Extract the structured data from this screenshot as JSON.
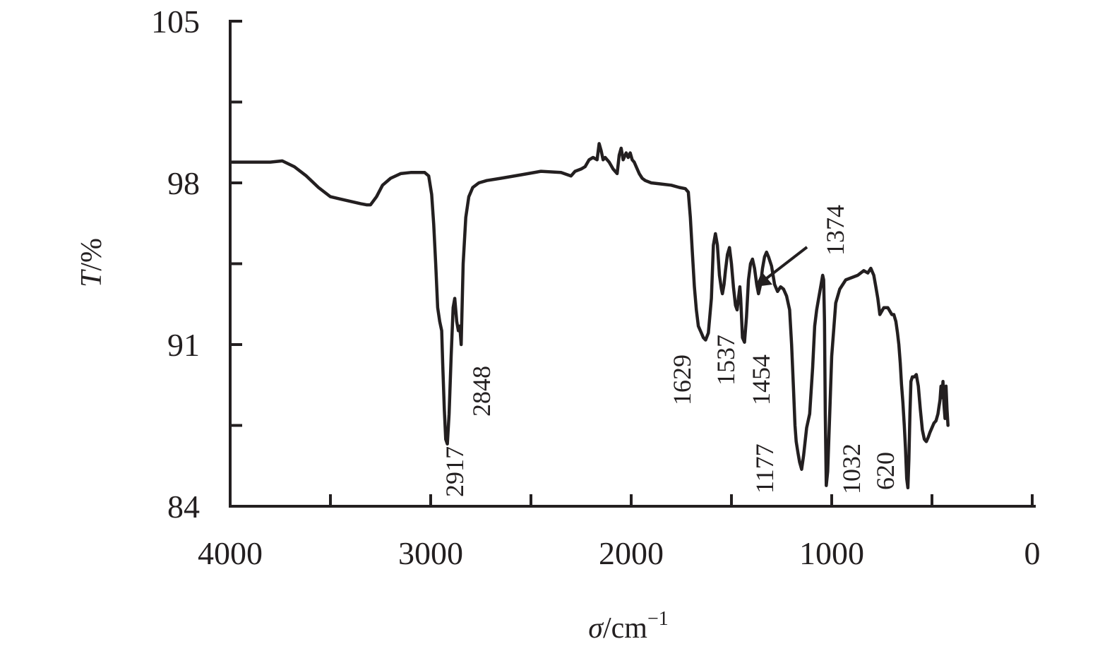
{
  "chart_data": {
    "type": "line",
    "title": "",
    "xlabel": "σ/cm",
    "xlabel_exponent": "−1",
    "ylabel_var": "T",
    "ylabel_unit": "/%",
    "xlim": [
      4000,
      0
    ],
    "ylim": [
      84,
      105
    ],
    "x_ticks": [
      4000,
      3000,
      2000,
      1000,
      0
    ],
    "x_minor_ticks": [
      3500,
      2500,
      1500,
      500
    ],
    "y_ticks": [
      84,
      91,
      98,
      105
    ],
    "y_minor_ticks": [
      87.5,
      94.5,
      101.5
    ],
    "grid": false,
    "line_color": "#231f20",
    "series": [
      {
        "x": [
          3990,
          3900,
          3800,
          3740,
          3680,
          3620,
          3560,
          3500,
          3450,
          3400,
          3350,
          3320,
          3300,
          3270,
          3240,
          3200,
          3150,
          3100,
          3060,
          3030,
          3010,
          2995,
          2985,
          2975,
          2965,
          2955,
          2945,
          2940,
          2932,
          2925,
          2917,
          2908,
          2898,
          2888,
          2880,
          2870,
          2862,
          2855,
          2848,
          2838,
          2825,
          2810,
          2790,
          2760,
          2720,
          2650,
          2550,
          2450,
          2350,
          2300,
          2280,
          2250,
          2230,
          2210,
          2190,
          2170,
          2160,
          2150,
          2140,
          2130,
          2110,
          2090,
          2070,
          2060,
          2050,
          2040,
          2025,
          2015,
          2005,
          1995,
          1985,
          1975,
          1960,
          1945,
          1930,
          1900,
          1850,
          1800,
          1760,
          1730,
          1715,
          1705,
          1695,
          1685,
          1675,
          1665,
          1650,
          1640,
          1629,
          1615,
          1600,
          1590,
          1580,
          1570,
          1560,
          1550,
          1545,
          1537,
          1530,
          1520,
          1510,
          1500,
          1490,
          1480,
          1472,
          1465,
          1458,
          1454,
          1445,
          1435,
          1425,
          1415,
          1405,
          1395,
          1385,
          1374,
          1365,
          1355,
          1345,
          1335,
          1325,
          1315,
          1300,
          1285,
          1270,
          1255,
          1240,
          1225,
          1210,
          1200,
          1190,
          1183,
          1177,
          1168,
          1160,
          1150,
          1140,
          1125,
          1110,
          1095,
          1085,
          1075,
          1065,
          1055,
          1045,
          1040,
          1036,
          1032,
          1027,
          1020,
          1010,
          1000,
          980,
          960,
          930,
          900,
          870,
          840,
          820,
          805,
          790,
          780,
          770,
          760,
          740,
          720,
          700,
          690,
          680,
          672,
          665,
          658,
          652,
          645,
          638,
          632,
          626,
          620,
          615,
          610,
          605,
          598,
          588,
          578,
          568,
          558,
          548,
          538,
          528,
          518,
          510,
          500,
          490,
          480,
          470,
          465,
          460,
          455,
          450,
          445,
          440,
          435,
          430,
          425,
          420
        ],
        "y": [
          98.9,
          98.9,
          98.9,
          98.95,
          98.7,
          98.3,
          97.8,
          97.4,
          97.3,
          97.2,
          97.1,
          97.05,
          97.05,
          97.4,
          97.9,
          98.2,
          98.4,
          98.45,
          98.45,
          98.45,
          98.3,
          97.5,
          96.2,
          94.5,
          92.6,
          92.0,
          91.6,
          90.2,
          88.2,
          86.9,
          86.7,
          88.0,
          90.5,
          92.6,
          93.0,
          92.0,
          91.6,
          91.8,
          91.0,
          94.5,
          96.5,
          97.4,
          97.8,
          98.0,
          98.1,
          98.2,
          98.35,
          98.5,
          98.45,
          98.3,
          98.5,
          98.6,
          98.7,
          99.0,
          99.1,
          99.0,
          99.7,
          99.4,
          99.0,
          99.1,
          98.9,
          98.6,
          98.4,
          99.2,
          99.5,
          99.0,
          99.3,
          99.1,
          99.3,
          99.0,
          98.9,
          98.7,
          98.4,
          98.2,
          98.1,
          98.0,
          97.95,
          97.9,
          97.8,
          97.75,
          97.6,
          96.5,
          95.0,
          93.5,
          92.5,
          91.8,
          91.5,
          91.3,
          91.2,
          91.5,
          93.0,
          95.3,
          95.8,
          95.3,
          94.0,
          93.4,
          93.2,
          93.6,
          94.2,
          94.9,
          95.2,
          94.5,
          93.5,
          92.7,
          92.5,
          93.0,
          93.5,
          93.0,
          91.3,
          91.1,
          92.2,
          93.8,
          94.5,
          94.7,
          94.3,
          93.6,
          93.2,
          93.6,
          94.3,
          94.8,
          95.0,
          94.8,
          94.4,
          93.6,
          93.3,
          93.5,
          93.4,
          93.1,
          92.5,
          91.0,
          89.0,
          87.5,
          86.8,
          86.3,
          85.9,
          85.6,
          86.2,
          87.4,
          88.0,
          90.0,
          91.8,
          92.5,
          93.0,
          93.5,
          94.0,
          93.8,
          92.0,
          88.0,
          84.9,
          85.5,
          88.0,
          90.5,
          92.8,
          93.4,
          93.8,
          93.9,
          94.0,
          94.2,
          94.1,
          94.3,
          94.0,
          93.5,
          93.0,
          92.3,
          92.6,
          92.6,
          92.3,
          92.3,
          92.0,
          91.5,
          91.0,
          90.2,
          89.3,
          88.5,
          87.5,
          86.5,
          85.2,
          84.8,
          86.0,
          88.0,
          89.4,
          89.6,
          89.6,
          89.7,
          89.2,
          88.2,
          87.3,
          86.9,
          86.8,
          87.0,
          87.2,
          87.4,
          87.6,
          87.7,
          88.0,
          88.3,
          88.6,
          89.2,
          88.7,
          89.4,
          88.4,
          87.8,
          89.2,
          88.2,
          87.5
        ]
      }
    ],
    "annotations": [
      {
        "text": "2917",
        "x": 2917
      },
      {
        "text": "2848",
        "x": 2848
      },
      {
        "text": "1629",
        "x": 1629
      },
      {
        "text": "1537",
        "x": 1537
      },
      {
        "text": "1454",
        "x": 1454
      },
      {
        "text": "1374",
        "x": 1374
      },
      {
        "text": "1177",
        "x": 1177
      },
      {
        "text": "1032",
        "x": 1032
      },
      {
        "text": "620",
        "x": 620
      }
    ]
  }
}
